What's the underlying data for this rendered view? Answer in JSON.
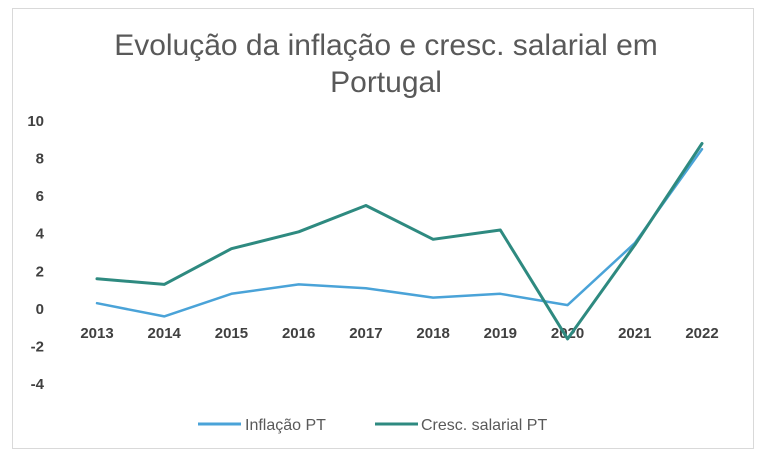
{
  "chart_data": {
    "type": "line",
    "title_lines": [
      "Evolução da inflação e cresc. salarial em",
      "Portugal"
    ],
    "categories": [
      "2013",
      "2014",
      "2015",
      "2016",
      "2017",
      "2018",
      "2019",
      "2020",
      "2021",
      "2022"
    ],
    "yticks": [
      "10",
      "8",
      "6",
      "4",
      "2",
      "0",
      "-2",
      "-4"
    ],
    "ylim": [
      -4,
      10
    ],
    "grid": false,
    "legend_position": "bottom",
    "series": [
      {
        "name": "Inflação PT",
        "color": "#4aa3d8",
        "values": [
          0.3,
          -0.4,
          0.8,
          1.3,
          1.1,
          0.6,
          0.8,
          0.2,
          3.5,
          8.5
        ]
      },
      {
        "name": "Cresc. salarial PT",
        "color": "#2e8a80",
        "values": [
          1.6,
          1.3,
          3.2,
          4.1,
          5.5,
          3.7,
          4.2,
          -1.6,
          3.4,
          8.8
        ]
      }
    ]
  }
}
